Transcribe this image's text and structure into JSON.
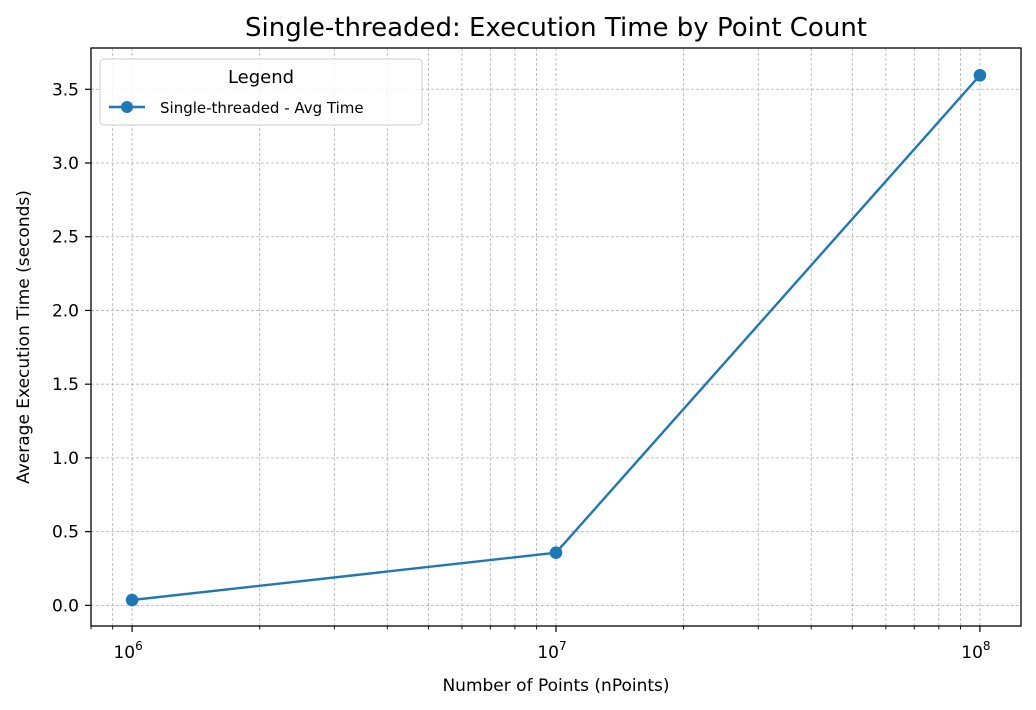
{
  "chart_data": {
    "type": "line",
    "title": "Single-threaded: Execution Time by Point Count",
    "xlabel": "Number of Points (nPoints)",
    "ylabel": "Average Execution Time (seconds)",
    "x_scale": "log",
    "xlim": [
      800000,
      125000000
    ],
    "ylim": [
      -0.14,
      3.78
    ],
    "x_ticks": [
      {
        "value": 1000000,
        "base": "10",
        "exp": "6"
      },
      {
        "value": 10000000,
        "base": "10",
        "exp": "7"
      },
      {
        "value": 100000000,
        "base": "10",
        "exp": "8"
      }
    ],
    "y_ticks": [
      {
        "value": 0.0,
        "label": "0.0"
      },
      {
        "value": 0.5,
        "label": "0.5"
      },
      {
        "value": 1.0,
        "label": "1.0"
      },
      {
        "value": 1.5,
        "label": "1.5"
      },
      {
        "value": 2.0,
        "label": "2.0"
      },
      {
        "value": 2.5,
        "label": "2.5"
      },
      {
        "value": 3.0,
        "label": "3.0"
      },
      {
        "value": 3.5,
        "label": "3.5"
      }
    ],
    "grid": true,
    "legend": {
      "title": "Legend",
      "placement": "top-left"
    },
    "series": [
      {
        "name": "Single-threaded - Avg Time",
        "color": "#1f77b4",
        "marker": "circle",
        "x": [
          1000000,
          10000000,
          100000000
        ],
        "y": [
          0.036,
          0.357,
          3.595
        ]
      }
    ]
  }
}
